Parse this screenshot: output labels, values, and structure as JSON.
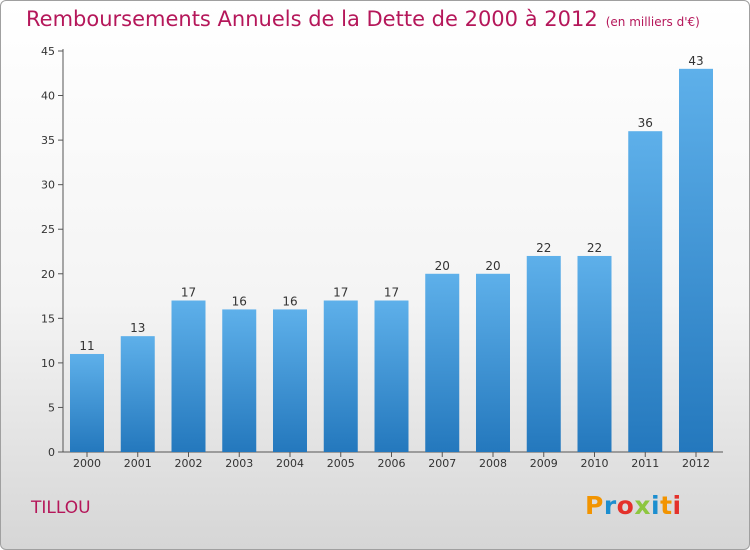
{
  "title": "Remboursements Annuels de la Dette de 2000 à 2012",
  "unit": "(en milliers d'€)",
  "location": "TILLOU",
  "logo": {
    "letters": [
      "P",
      "r",
      "o",
      "x",
      "i",
      "t",
      "i"
    ],
    "colors": [
      "#f29400",
      "#1c8ecf",
      "#e4312b",
      "#8dc63f",
      "#1c8ecf",
      "#f29400",
      "#e4312b"
    ]
  },
  "chart_data": {
    "type": "bar",
    "categories": [
      "2000",
      "2001",
      "2002",
      "2003",
      "2004",
      "2005",
      "2006",
      "2007",
      "2008",
      "2009",
      "2010",
      "2011",
      "2012"
    ],
    "values": [
      11,
      13,
      17,
      16,
      16,
      17,
      17,
      20,
      20,
      22,
      22,
      36,
      43
    ],
    "ylim": [
      0,
      45
    ],
    "yticks": [
      0,
      5,
      10,
      15,
      20,
      25,
      30,
      35,
      40,
      45
    ],
    "grid": false,
    "bar_color": "#3a97db"
  }
}
